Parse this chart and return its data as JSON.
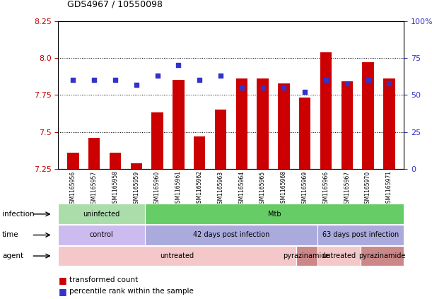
{
  "title": "GDS4967 / 10550098",
  "samples": [
    "GSM1165956",
    "GSM1165957",
    "GSM1165958",
    "GSM1165959",
    "GSM1165960",
    "GSM1165961",
    "GSM1165962",
    "GSM1165963",
    "GSM1165964",
    "GSM1165965",
    "GSM1165968",
    "GSM1165969",
    "GSM1165966",
    "GSM1165967",
    "GSM1165970",
    "GSM1165971"
  ],
  "bar_values": [
    7.36,
    7.46,
    7.36,
    7.29,
    7.63,
    7.85,
    7.47,
    7.65,
    7.86,
    7.86,
    7.83,
    7.73,
    8.04,
    7.84,
    7.97,
    7.86
  ],
  "dot_values": [
    60,
    60,
    60,
    57,
    63,
    70,
    60,
    63,
    55,
    55,
    55,
    52,
    60,
    58,
    60,
    58
  ],
  "ylim_left": [
    7.25,
    8.25
  ],
  "ylim_right": [
    0,
    100
  ],
  "yticks_left": [
    7.25,
    7.5,
    7.75,
    8.0,
    8.25
  ],
  "yticks_right": [
    0,
    25,
    50,
    75,
    100
  ],
  "ytick_labels_right": [
    "0",
    "25",
    "50",
    "75",
    "100%"
  ],
  "bar_color": "#cc0000",
  "dot_color": "#3333cc",
  "bar_bottom": 7.25,
  "infection_labels": [
    {
      "text": "uninfected",
      "start": 0,
      "end": 4,
      "color": "#aaddaa"
    },
    {
      "text": "Mtb",
      "start": 4,
      "end": 16,
      "color": "#66cc66"
    }
  ],
  "time_labels": [
    {
      "text": "control",
      "start": 0,
      "end": 4,
      "color": "#ccbbee"
    },
    {
      "text": "42 days post infection",
      "start": 4,
      "end": 12,
      "color": "#aaaadd"
    },
    {
      "text": "63 days post infection",
      "start": 12,
      "end": 16,
      "color": "#aaaadd"
    }
  ],
  "agent_labels": [
    {
      "text": "untreated",
      "start": 0,
      "end": 11,
      "color": "#f4c8c8"
    },
    {
      "text": "pyrazinamide",
      "start": 11,
      "end": 12,
      "color": "#cc8888"
    },
    {
      "text": "untreated",
      "start": 12,
      "end": 14,
      "color": "#f4c8c8"
    },
    {
      "text": "pyrazinamide",
      "start": 14,
      "end": 16,
      "color": "#cc8888"
    }
  ],
  "grid_dotted_values": [
    7.5,
    7.75,
    8.0
  ],
  "background_color": "#ffffff",
  "tick_label_color_left": "#cc0000",
  "tick_label_color_right": "#3333cc",
  "xtick_bg_color": "#dddddd",
  "legend_items": [
    {
      "color": "#cc0000",
      "label": "transformed count"
    },
    {
      "color": "#3333cc",
      "label": "percentile rank within the sample"
    }
  ]
}
